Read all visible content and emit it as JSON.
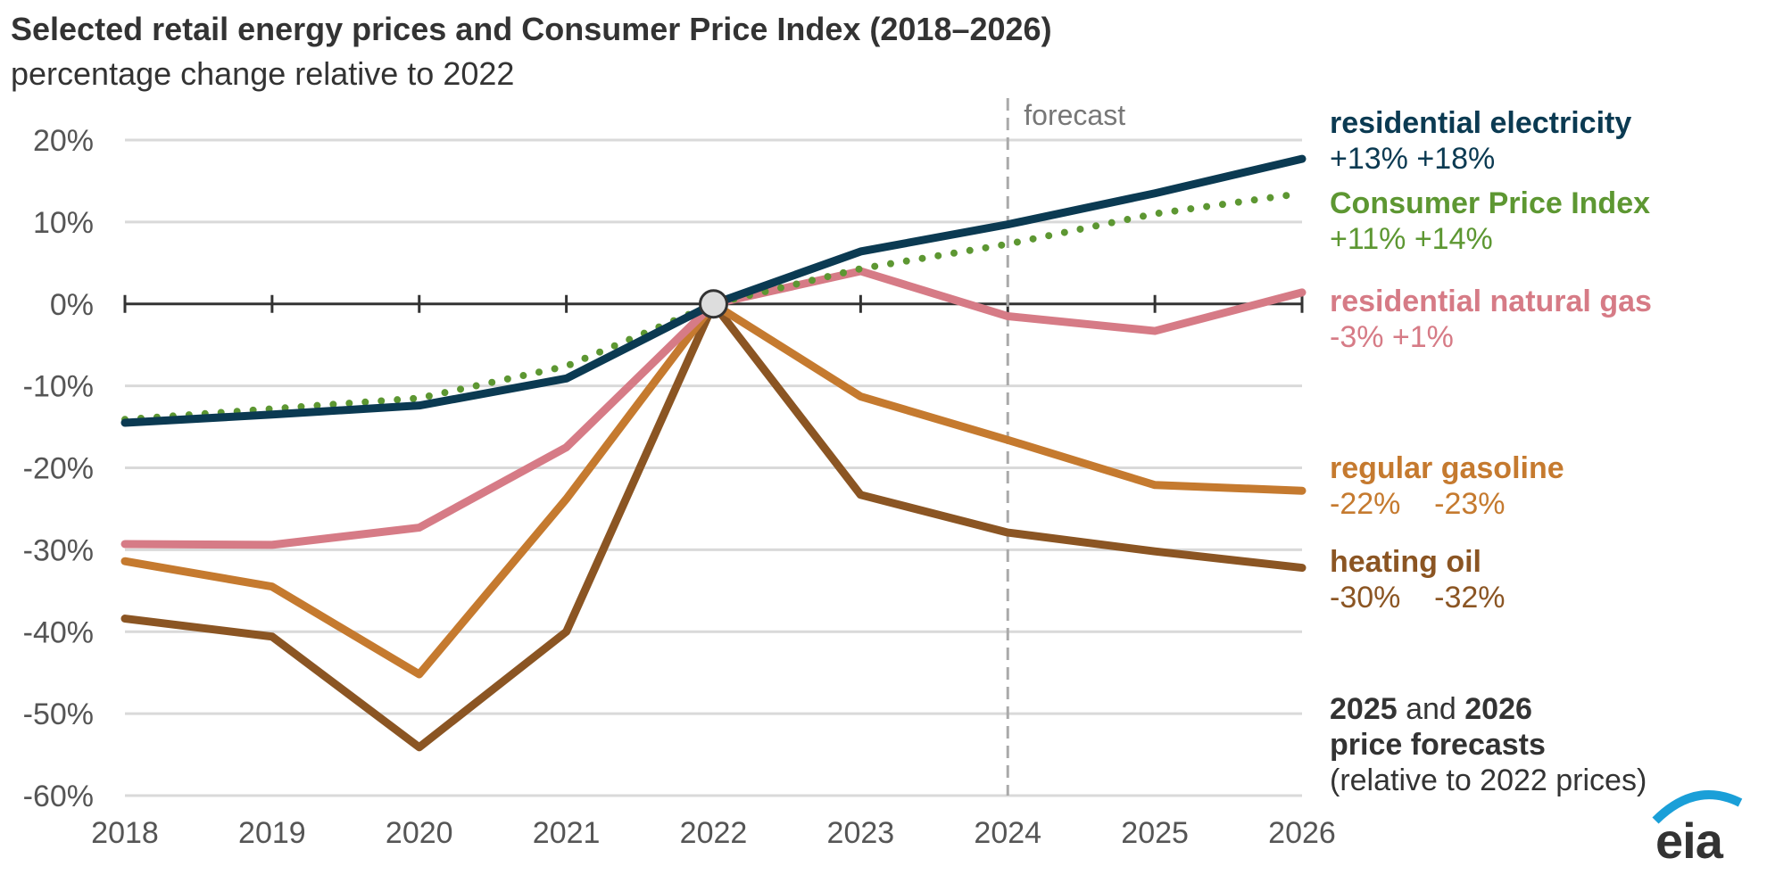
{
  "title": "Selected retail energy prices and Consumer Price Index (2018–2026)",
  "subtitle": "percentage change relative to 2022",
  "chart_data": {
    "type": "line",
    "title": "Selected retail energy prices and Consumer Price Index (2018–2026)",
    "subtitle": "percentage change relative to 2022",
    "x": [
      2018,
      2019,
      2020,
      2021,
      2022,
      2023,
      2024,
      2025,
      2026
    ],
    "xtick_labels": [
      "2018",
      "2019",
      "2020",
      "2021",
      "2022",
      "2023",
      "2024",
      "2025",
      "2026"
    ],
    "ytick_labels": [
      "20%",
      "10%",
      "0%",
      "-10%",
      "-20%",
      "-30%",
      "-40%",
      "-50%",
      "-60%"
    ],
    "yticks": [
      20,
      10,
      0,
      -10,
      -20,
      -30,
      -40,
      -50,
      -60
    ],
    "ylim": [
      -60,
      20
    ],
    "xlim": [
      2018,
      2026
    ],
    "grid": "horizontal",
    "forecast_start": 2024,
    "forecast_label": "forecast",
    "series": [
      {
        "name": "residential electricity",
        "color": "#0b3a52",
        "style": "solid",
        "values": [
          -14.5,
          -13.5,
          -12.4,
          -9.1,
          0,
          6.4,
          9.7,
          13.5,
          17.7
        ],
        "labels": "+13% +18%"
      },
      {
        "name": "Consumer Price Index",
        "color": "#5d9732",
        "style": "dotted",
        "values": [
          -14.1,
          -12.8,
          -11.5,
          -7.6,
          0,
          4.3,
          7.3,
          11,
          13.5
        ],
        "labels": "+11% +14%"
      },
      {
        "name": "residential natural gas",
        "color": "#d67b86",
        "style": "solid",
        "values": [
          -29.3,
          -29.4,
          -27.3,
          -17.5,
          0,
          4,
          -1.5,
          -3.3,
          1.4
        ],
        "labels": "-3% +1%"
      },
      {
        "name": "regular gasoline",
        "color": "#c57a2f",
        "style": "solid",
        "values": [
          -31.4,
          -34.5,
          -45.2,
          -23.8,
          0,
          -11.3,
          -16.6,
          -22.1,
          -22.8
        ],
        "labels": "-22%    -23%"
      },
      {
        "name": "heating oil",
        "color": "#8b5523",
        "style": "solid",
        "values": [
          -38.4,
          -40.6,
          -54.1,
          -40,
          0,
          -23.3,
          -27.9,
          -30.2,
          -32.2
        ],
        "labels": "-30%    -32%"
      }
    ],
    "note": {
      "y1": "2025",
      "and": " and ",
      "y2": "2026",
      "line2": "price forecasts",
      "line3": "(relative to 2022 prices)"
    }
  },
  "logo": "eia"
}
